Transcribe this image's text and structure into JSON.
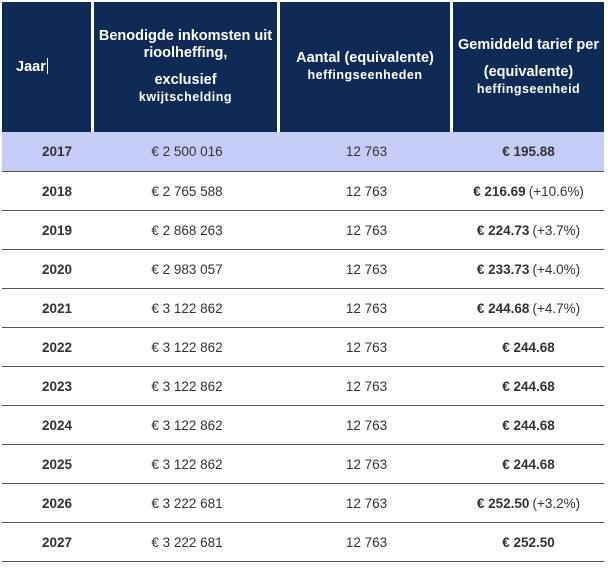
{
  "header": {
    "year_label": "Jaar",
    "income_line1": "Benodigde inkomsten uit rioolheffing,",
    "income_line2": "exclusief",
    "income_line3": "kwijtschelding",
    "units_line1": "Aantal (equivalente)",
    "units_line2": "heffingseenheden",
    "rate_line1": "Gemiddeld tarief per",
    "rate_line2": "(equivalente)",
    "rate_line3": "heffingseenheid"
  },
  "rows": [
    {
      "year": "2017",
      "income": "€ 2 500 016",
      "units": "12 763",
      "rate": "€ 195.88",
      "change": "",
      "highlight": true
    },
    {
      "year": "2018",
      "income": "€ 2 765 588",
      "units": "12 763",
      "rate": "€ 216.69",
      "change": "(+10.6%)"
    },
    {
      "year": "2019",
      "income": "€ 2 868 263",
      "units": "12 763",
      "rate": "€ 224.73",
      "change": "(+3.7%)"
    },
    {
      "year": "2020",
      "income": "€ 2 983 057",
      "units": "12 763",
      "rate": "€ 233.73",
      "change": "(+4.0%)"
    },
    {
      "year": "2021",
      "income": "€ 3 122 862",
      "units": "12 763",
      "rate": "€ 244.68",
      "change": "(+4.7%)"
    },
    {
      "year": "2022",
      "income": "€ 3 122 862",
      "units": "12 763",
      "rate": "€ 244.68",
      "change": ""
    },
    {
      "year": "2023",
      "income": "€ 3 122 862",
      "units": "12 763",
      "rate": "€ 244.68",
      "change": ""
    },
    {
      "year": "2024",
      "income": "€ 3 122 862",
      "units": "12 763",
      "rate": "€ 244.68",
      "change": ""
    },
    {
      "year": "2025",
      "income": "€ 3 122 862",
      "units": "12 763",
      "rate": "€ 244.68",
      "change": ""
    },
    {
      "year": "2026",
      "income": "€ 3 222 681",
      "units": "12 763",
      "rate": "€ 252.50",
      "change": "(+3.2%)"
    },
    {
      "year": "2027",
      "income": "€ 3 222 681",
      "units": "12 763",
      "rate": "€ 252.50",
      "change": ""
    }
  ],
  "colors": {
    "header_bg": "#0f2a55",
    "highlight_row_bg": "#c5cdf7"
  }
}
